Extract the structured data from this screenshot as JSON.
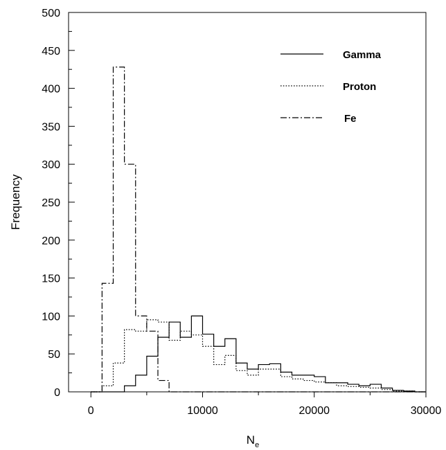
{
  "chart_data": {
    "type": "histogram",
    "xlabel": "N",
    "xlabel_sub": "e",
    "ylabel": "Frequency",
    "xlim": [
      -2000,
      30000
    ],
    "ylim": [
      0,
      500
    ],
    "x_ticks": [
      0,
      10000,
      20000,
      30000
    ],
    "x_tick_labels": [
      "0",
      "10000",
      "20000",
      "30000"
    ],
    "y_ticks": [
      0,
      50,
      100,
      150,
      200,
      250,
      300,
      350,
      400,
      450,
      500
    ],
    "y_tick_labels": [
      "0",
      "50",
      "100",
      "150",
      "200",
      "250",
      "300",
      "350",
      "400",
      "450",
      "500"
    ],
    "grid": false,
    "legend_position": "top-right",
    "bin_edges": [
      0,
      1000,
      2000,
      3000,
      4000,
      5000,
      6000,
      7000,
      8000,
      9000,
      10000,
      11000,
      12000,
      13000,
      14000,
      15000,
      16000,
      17000,
      18000,
      19000,
      20000,
      21000,
      22000,
      23000,
      24000,
      25000,
      26000,
      27000,
      28000,
      29000,
      30000
    ],
    "series": [
      {
        "name": "Gamma",
        "dash": "solid",
        "values": [
          0,
          0,
          0,
          8,
          22,
          47,
          72,
          92,
          72,
          100,
          76,
          60,
          70,
          38,
          30,
          36,
          37,
          26,
          22,
          22,
          20,
          12,
          12,
          10,
          8,
          10,
          5,
          2,
          1,
          0
        ]
      },
      {
        "name": "Proton",
        "dash": "dotted",
        "values": [
          0,
          8,
          38,
          82,
          80,
          95,
          92,
          68,
          80,
          75,
          60,
          36,
          48,
          28,
          22,
          30,
          30,
          20,
          17,
          15,
          13,
          12,
          8,
          7,
          6,
          5,
          3,
          1,
          1,
          0
        ]
      },
      {
        "name": "Fe",
        "dash": "dashdot",
        "values": [
          0,
          143,
          428,
          300,
          100,
          80,
          15,
          0,
          0,
          0,
          0,
          0,
          0,
          0,
          0,
          0,
          0,
          0,
          0,
          0,
          0,
          0,
          0,
          0,
          0,
          0,
          0,
          0,
          0,
          0
        ]
      }
    ]
  }
}
